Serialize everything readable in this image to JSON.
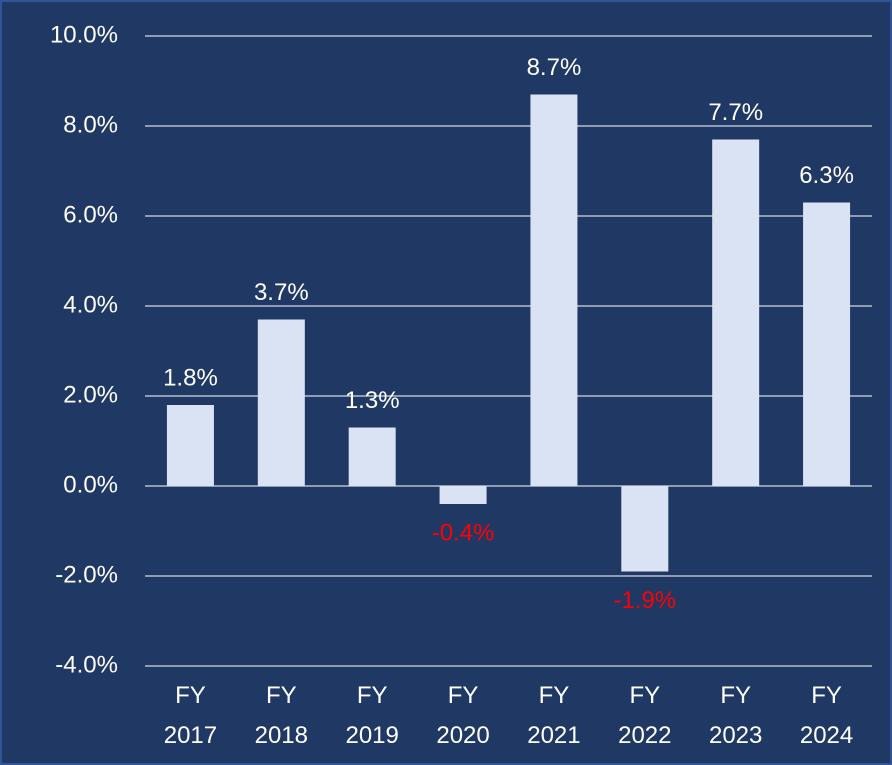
{
  "chart_data": {
    "type": "bar",
    "categories": [
      "FY 2017",
      "FY 2018",
      "FY 2019",
      "FY 2020",
      "FY 2021",
      "FY 2022",
      "FY 2023",
      "FY 2024"
    ],
    "values": [
      1.8,
      3.7,
      1.3,
      -0.4,
      8.7,
      -1.9,
      7.7,
      6.3
    ],
    "value_labels": [
      "1.8%",
      "3.7%",
      "1.3%",
      "-0.4%",
      "8.7%",
      "-1.9%",
      "7.7%",
      "6.3%"
    ],
    "color": "#dae3f3",
    "label_color": "#ffffff",
    "negative_label_color": "#ff0000",
    "ylim": [
      -4,
      10
    ],
    "yticks": [
      {
        "value": -4,
        "label": "-4.0%"
      },
      {
        "value": -2,
        "label": "-2.0%"
      },
      {
        "value": 0,
        "label": "0.0%"
      },
      {
        "value": 2,
        "label": "2.0%"
      },
      {
        "value": 4,
        "label": "4.0%"
      },
      {
        "value": 6,
        "label": "6.0%"
      },
      {
        "value": 8,
        "label": "8.0%"
      },
      {
        "value": 10,
        "label": "10.0%"
      }
    ],
    "grid": true
  }
}
